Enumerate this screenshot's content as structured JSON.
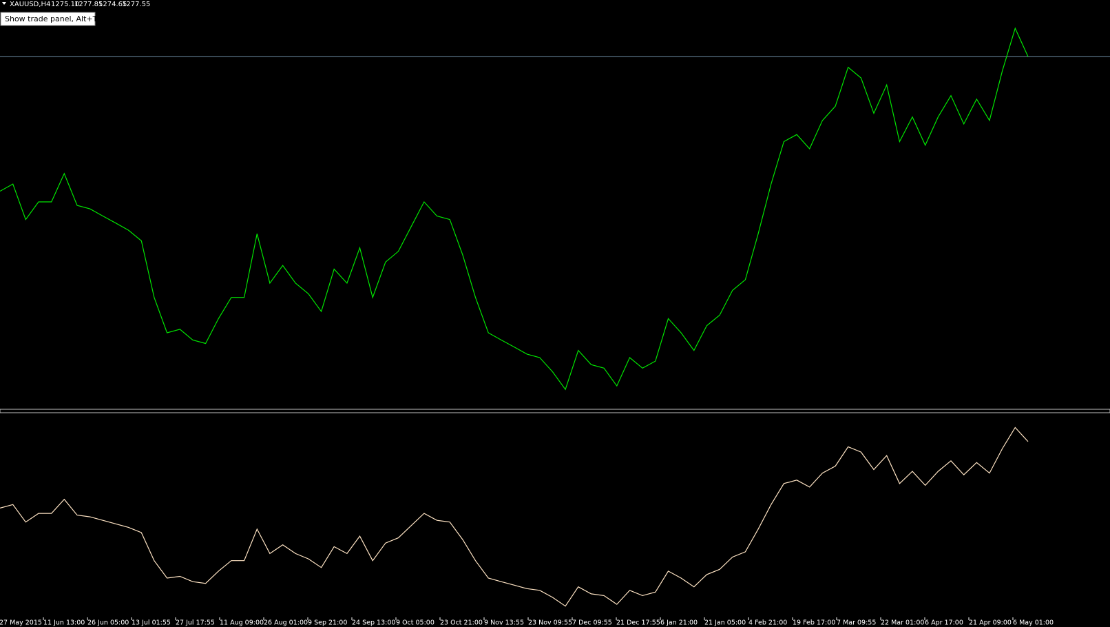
{
  "header": {
    "symbol": "XAUUSD,H4",
    "ohlc": [
      {
        "value": 1275.1,
        "label": "1275.10"
      },
      {
        "value": 1277.85,
        "label": "1277.85"
      },
      {
        "value": 1274.65,
        "label": "1274.65"
      },
      {
        "value": 1277.55,
        "label": "1277.55"
      }
    ],
    "button": "Show trade panel, Alt+T"
  },
  "chart_data": {
    "type": "line",
    "x_labels": [
      "27 May 2015",
      "11 Jun 13:00",
      "26 Jun 05:00",
      "13 Jul 01:55",
      "27 Jul 17:55",
      "11 Aug 09:00",
      "26 Aug 01:00",
      "9 Sep 21:00",
      "24 Sep 13:00",
      "9 Oct 05:00",
      "23 Oct 21:00",
      "9 Nov 13:55",
      "23 Nov 09:55",
      "7 Dec 09:55",
      "21 Dec 17:55",
      "6 Jan 21:00",
      "21 Jan 05:00",
      "4 Feb 21:00",
      "19 Feb 17:00",
      "7 Mar 09:55",
      "22 Mar 01:00",
      "6 Apr 17:00",
      "21 Apr 09:00",
      "6 May 01:00"
    ],
    "ylim": [
      1036,
      1316.4
    ],
    "indicator_ylim": [
      1034,
      1316.6
    ],
    "series": [
      {
        "color": "#00e600",
        "values": [
          1185.4,
          1190.3,
          1166.0,
          1178.1,
          1178.1,
          1197.5,
          1175.7,
          1173.3,
          1168.4,
          1163.6,
          1158.7,
          1151.4,
          1112.6,
          1088.4,
          1090.8,
          1083.5,
          1081.1,
          1098.1,
          1112.6,
          1112.6,
          1156.3,
          1122.4,
          1134.5,
          1122.4,
          1115.1,
          1103.0,
          1132.0,
          1122.4,
          1146.6,
          1112.6,
          1136.9,
          1144.2,
          1161.2,
          1178.1,
          1168.4,
          1166.0,
          1141.8,
          1112.6,
          1088.4,
          1083.5,
          1078.7,
          1073.8,
          1071.4,
          1061.7,
          1049.6,
          1076.3,
          1066.6,
          1064.2,
          1052.0,
          1071.4,
          1064.2,
          1069.0,
          1098.1,
          1088.4,
          1076.3,
          1093.3,
          1100.5,
          1117.5,
          1124.8,
          1156.3,
          1190.3,
          1219.4,
          1224.2,
          1214.5,
          1233.9,
          1243.6,
          1270.3,
          1263.0,
          1238.8,
          1258.2,
          1219.4,
          1236.3,
          1216.9,
          1236.3,
          1250.9,
          1231.5,
          1248.5,
          1233.9,
          1267.9,
          1297.0,
          1277.55
        ]
      }
    ],
    "indicator_color": "#ffe4c4",
    "bid_line_color": "#6f8fa8"
  }
}
